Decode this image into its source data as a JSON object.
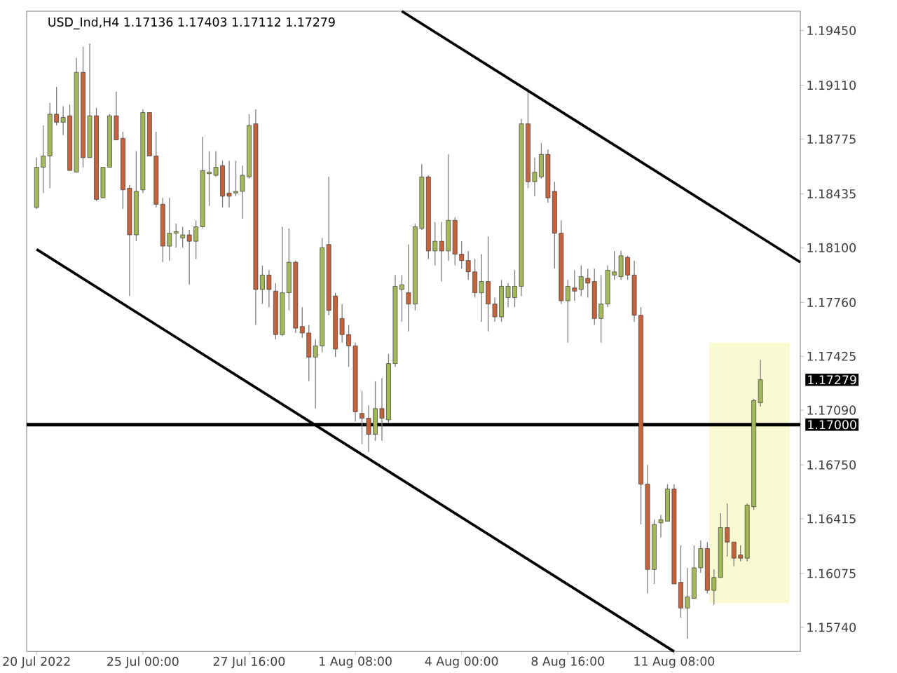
{
  "chart_data": {
    "type": "candlestick",
    "title": "USD_Ind,H4 1.17136 1.17403 1.17112 1.17279",
    "categories": [
      "20 Jul 2022",
      null,
      null,
      null,
      null,
      null,
      null,
      null,
      null,
      null,
      null,
      null,
      null,
      null,
      null,
      null,
      "25 Jul 00:00",
      null,
      null,
      null,
      null,
      null,
      null,
      null,
      null,
      null,
      null,
      null,
      null,
      null,
      null,
      null,
      "27 Jul 16:00",
      null,
      null,
      null,
      null,
      null,
      null,
      null,
      null,
      null,
      null,
      null,
      null,
      null,
      null,
      null,
      "1 Aug 08:00",
      null,
      null,
      null,
      null,
      null,
      null,
      null,
      null,
      null,
      null,
      null,
      null,
      null,
      null,
      null,
      "4 Aug 00:00",
      null,
      null,
      null,
      null,
      null,
      null,
      null,
      null,
      null,
      null,
      null,
      null,
      null,
      null,
      null,
      "8 Aug 16:00",
      null,
      null,
      null,
      null,
      null,
      null,
      null,
      null,
      null,
      null,
      null,
      null,
      null,
      null,
      null,
      "11 Aug 08:00",
      null,
      null,
      null,
      null,
      null,
      null,
      null,
      null,
      null,
      null,
      null,
      null,
      null,
      null,
      null,
      null,
      null,
      null,
      null
    ],
    "ohlc": [
      [
        1.1835,
        1.1866,
        1.1834,
        1.186
      ],
      [
        1.186,
        1.1886,
        1.1844,
        1.1867
      ],
      [
        1.1867,
        1.19,
        1.1847,
        1.1893
      ],
      [
        1.1893,
        1.191,
        1.1886,
        1.1888
      ],
      [
        1.1888,
        1.1898,
        1.188,
        1.1891
      ],
      [
        1.1892,
        1.1899,
        1.1858,
        1.1858
      ],
      [
        1.1857,
        1.1928,
        1.1857,
        1.1919
      ],
      [
        1.1919,
        1.1935,
        1.186,
        1.1866
      ],
      [
        1.1866,
        1.1937,
        1.1866,
        1.1892
      ],
      [
        1.1892,
        1.1897,
        1.1839,
        1.184
      ],
      [
        1.1841,
        1.186,
        1.1841,
        1.186
      ],
      [
        1.186,
        1.1893,
        1.186,
        1.1892
      ],
      [
        1.1892,
        1.1907,
        1.1877,
        1.1877
      ],
      [
        1.1878,
        1.1882,
        1.1834,
        1.1846
      ],
      [
        1.1847,
        1.1849,
        1.178,
        1.1818
      ],
      [
        1.1818,
        1.187,
        1.1814,
        1.1845
      ],
      [
        1.1846,
        1.1896,
        1.1844,
        1.1894
      ],
      [
        1.1894,
        1.1894,
        1.1867,
        1.1867
      ],
      [
        1.1867,
        1.1882,
        1.1835,
        1.1837
      ],
      [
        1.1837,
        1.1841,
        1.1801,
        1.1811
      ],
      [
        1.1811,
        1.1841,
        1.1802,
        1.1819
      ],
      [
        1.1819,
        1.1825,
        1.181,
        1.182
      ],
      [
        1.1816,
        1.1823,
        1.181,
        1.1818
      ],
      [
        1.1818,
        1.1821,
        1.1787,
        1.1814
      ],
      [
        1.1814,
        1.1827,
        1.1803,
        1.1823
      ],
      [
        1.1823,
        1.1879,
        1.1822,
        1.1858
      ],
      [
        1.1856,
        1.187,
        1.1836,
        1.1857
      ],
      [
        1.1855,
        1.187,
        1.1854,
        1.186
      ],
      [
        1.1861,
        1.1864,
        1.1835,
        1.1842
      ],
      [
        1.1844,
        1.1864,
        1.1835,
        1.1842
      ],
      [
        1.1844,
        1.1864,
        1.1842,
        1.1845
      ],
      [
        1.1845,
        1.1861,
        1.1828,
        1.1855
      ],
      [
        1.1854,
        1.1893,
        1.1853,
        1.1886
      ],
      [
        1.1887,
        1.1896,
        1.1762,
        1.1784
      ],
      [
        1.1784,
        1.1799,
        1.1775,
        1.1793
      ],
      [
        1.1793,
        1.1796,
        1.1773,
        1.1784
      ],
      [
        1.1783,
        1.1788,
        1.1753,
        1.1756
      ],
      [
        1.1756,
        1.1823,
        1.1755,
        1.1782
      ],
      [
        1.1782,
        1.1822,
        1.1771,
        1.1801
      ],
      [
        1.1801,
        1.1802,
        1.1757,
        1.176
      ],
      [
        1.1761,
        1.1773,
        1.1754,
        1.1757
      ],
      [
        1.1757,
        1.1762,
        1.1727,
        1.1742
      ],
      [
        1.1742,
        1.1753,
        1.171,
        1.1749
      ],
      [
        1.1749,
        1.1816,
        1.1745,
        1.181
      ],
      [
        1.1812,
        1.1854,
        1.1768,
        1.1771
      ],
      [
        1.178,
        1.1782,
        1.1742,
        1.1747
      ],
      [
        1.1766,
        1.1775,
        1.1751,
        1.1756
      ],
      [
        1.1756,
        1.1762,
        1.1736,
        1.1749
      ],
      [
        1.1749,
        1.1751,
        1.1702,
        1.1708
      ],
      [
        1.1707,
        1.1721,
        1.1688,
        1.1704
      ],
      [
        1.1704,
        1.1712,
        1.1683,
        1.1694
      ],
      [
        1.1694,
        1.1727,
        1.169,
        1.171
      ],
      [
        1.171,
        1.1729,
        1.169,
        1.1704
      ],
      [
        1.1703,
        1.1744,
        1.1701,
        1.1738
      ],
      [
        1.1738,
        1.1793,
        1.1736,
        1.1786
      ],
      [
        1.1784,
        1.1793,
        1.1764,
        1.1787
      ],
      [
        1.1782,
        1.1812,
        1.1758,
        1.1775
      ],
      [
        1.1775,
        1.1825,
        1.1771,
        1.1823
      ],
      [
        1.1822,
        1.1862,
        1.1821,
        1.1854
      ],
      [
        1.1854,
        1.1855,
        1.1803,
        1.1808
      ],
      [
        1.1808,
        1.1826,
        1.1799,
        1.1814
      ],
      [
        1.1814,
        1.1826,
        1.1789,
        1.1808
      ],
      [
        1.1808,
        1.1868,
        1.1802,
        1.1827
      ],
      [
        1.1827,
        1.1829,
        1.1799,
        1.1806
      ],
      [
        1.1806,
        1.1814,
        1.1797,
        1.1802
      ],
      [
        1.1802,
        1.1808,
        1.179,
        1.1795
      ],
      [
        1.1795,
        1.1803,
        1.1779,
        1.1782
      ],
      [
        1.1782,
        1.1806,
        1.1764,
        1.1789
      ],
      [
        1.1789,
        1.1817,
        1.1758,
        1.1775
      ],
      [
        1.1775,
        1.1779,
        1.1764,
        1.1767
      ],
      [
        1.1767,
        1.179,
        1.1764,
        1.1786
      ],
      [
        1.1779,
        1.1788,
        1.1773,
        1.1786
      ],
      [
        1.1779,
        1.1796,
        1.1773,
        1.1786
      ],
      [
        1.1786,
        1.189,
        1.178,
        1.1887
      ],
      [
        1.1887,
        1.1909,
        1.1847,
        1.1851
      ],
      [
        1.1851,
        1.1866,
        1.1842,
        1.1857
      ],
      [
        1.1854,
        1.1875,
        1.1853,
        1.1868
      ],
      [
        1.1868,
        1.1871,
        1.1838,
        1.1841
      ],
      [
        1.1845,
        1.1851,
        1.1797,
        1.1819
      ],
      [
        1.1819,
        1.1827,
        1.1775,
        1.1777
      ],
      [
        1.1777,
        1.179,
        1.1751,
        1.1786
      ],
      [
        1.1785,
        1.1796,
        1.1777,
        1.1783
      ],
      [
        1.1784,
        1.1799,
        1.178,
        1.1792
      ],
      [
        1.1791,
        1.1797,
        1.1779,
        1.1788
      ],
      [
        1.1789,
        1.1797,
        1.1762,
        1.1766
      ],
      [
        1.1766,
        1.1793,
        1.1751,
        1.1775
      ],
      [
        1.1775,
        1.1799,
        1.1773,
        1.1796
      ],
      [
        1.1793,
        1.1808,
        1.179,
        1.1795
      ],
      [
        1.1792,
        1.1808,
        1.179,
        1.1805
      ],
      [
        1.1804,
        1.1805,
        1.179,
        1.1793
      ],
      [
        1.1793,
        1.1802,
        1.1764,
        1.1768
      ],
      [
        1.1768,
        1.1773,
        1.1638,
        1.1663
      ],
      [
        1.1663,
        1.1675,
        1.1595,
        1.161
      ],
      [
        1.161,
        1.1641,
        1.1601,
        1.1638
      ],
      [
        1.1639,
        1.1644,
        1.163,
        1.1641
      ],
      [
        1.164,
        1.1663,
        1.164,
        1.166
      ],
      [
        1.166,
        1.1663,
        1.1601,
        1.1601
      ],
      [
        1.1602,
        1.1625,
        1.158,
        1.1586
      ],
      [
        1.1586,
        1.1611,
        1.1567,
        1.1593
      ],
      [
        1.1592,
        1.1625,
        1.1592,
        1.1611
      ],
      [
        1.1611,
        1.1628,
        1.1608,
        1.1623
      ],
      [
        1.1623,
        1.1627,
        1.1595,
        1.1597
      ],
      [
        1.1597,
        1.161,
        1.1588,
        1.1605
      ],
      [
        1.1605,
        1.1645,
        1.1605,
        1.1636
      ],
      [
        1.1636,
        1.1651,
        1.1618,
        1.1627
      ],
      [
        1.1627,
        1.1627,
        1.1612,
        1.1617
      ],
      [
        1.1619,
        1.1625,
        1.1615,
        1.1617
      ],
      [
        1.1617,
        1.1651,
        1.1615,
        1.165
      ],
      [
        1.1649,
        1.1716,
        1.1647,
        1.1715
      ],
      [
        1.17136,
        1.17403,
        1.17112,
        1.17279
      ],
      null,
      null,
      null,
      null,
      null,
      null
    ],
    "colors": [
      "#a3b85a",
      "#a3b85a",
      "#a3b85a",
      "#c4633c",
      "#a3b85a",
      "#c4633c",
      "#a3b85a",
      "#c4633c",
      "#a3b85a",
      "#c4633c",
      "#a3b85a",
      "#a3b85a",
      "#c4633c",
      "#c4633c",
      "#c4633c",
      "#a3b85a",
      "#a3b85a",
      "#c4633c",
      "#c4633c",
      "#c4633c",
      "#a3b85a",
      "#a3b85a",
      "#a3b85a",
      "#c4633c",
      "#a3b85a",
      "#a3b85a",
      "#a3b85a",
      "#a3b85a",
      "#c4633c",
      "#c4633c",
      "#a3b85a",
      "#a3b85a",
      "#a3b85a",
      "#c4633c",
      "#a3b85a",
      "#c4633c",
      "#c4633c",
      "#a3b85a",
      "#a3b85a",
      "#c4633c",
      "#c4633c",
      "#c4633c",
      "#a3b85a",
      "#a3b85a",
      "#c4633c",
      "#c4633c",
      "#c4633c",
      "#c4633c",
      "#c4633c",
      "#c4633c",
      "#c4633c",
      "#a3b85a",
      "#c4633c",
      "#a3b85a",
      "#a3b85a",
      "#a3b85a",
      "#c4633c",
      "#a3b85a",
      "#a3b85a",
      "#c4633c",
      "#a3b85a",
      "#c4633c",
      "#a3b85a",
      "#c4633c",
      "#c4633c",
      "#c4633c",
      "#c4633c",
      "#a3b85a",
      "#c4633c",
      "#c4633c",
      "#a3b85a",
      "#a3b85a",
      "#a3b85a",
      "#a3b85a",
      "#c4633c",
      "#a3b85a",
      "#a3b85a",
      "#c4633c",
      "#c4633c",
      "#c4633c",
      "#a3b85a",
      "#c4633c",
      "#a3b85a",
      "#c4633c",
      "#c4633c",
      "#a3b85a",
      "#a3b85a",
      "#a3b85a",
      "#a3b85a",
      "#c4633c",
      "#c4633c",
      "#c4633c",
      "#c4633c",
      "#a3b85a",
      "#a3b85a",
      "#a3b85a",
      "#c4633c",
      "#c4633c",
      "#a3b85a",
      "#a3b85a",
      "#a3b85a",
      "#c4633c",
      "#a3b85a",
      "#a3b85a",
      "#c4633c",
      "#c4633c",
      "#c4633c",
      "#a3b85a",
      "#a3b85a",
      "#a3b85a",
      null,
      null,
      null,
      null,
      null,
      null
    ],
    "series": [
      {
        "type": "line",
        "color": "#000000",
        "values": [
          null,
          null,
          null,
          null,
          null,
          null,
          null,
          null,
          null,
          null,
          null,
          null,
          null,
          null,
          null,
          null,
          null,
          null,
          null,
          null,
          null,
          null,
          null,
          null,
          null,
          null,
          null,
          null,
          null,
          null,
          null,
          null,
          null,
          null,
          null,
          null,
          null,
          null,
          null,
          null,
          null,
          null,
          null,
          null,
          null,
          null,
          null,
          null,
          null,
          null,
          null,
          null,
          null,
          null,
          null,
          1.1957,
          null,
          null,
          null,
          null,
          null,
          null,
          null,
          null,
          null,
          null,
          null,
          null,
          null,
          null,
          null,
          null,
          null,
          null,
          null,
          null,
          null,
          null,
          null,
          null,
          null,
          null,
          null,
          null,
          null,
          null,
          null,
          null,
          null,
          null,
          null,
          null,
          null,
          null,
          null,
          null,
          null,
          null,
          null,
          null,
          null,
          null,
          null,
          null,
          null,
          null,
          null,
          null,
          null,
          null,
          null,
          null,
          null,
          null,
          null,
          1.1801
        ]
      },
      {
        "type": "line",
        "color": "#000000",
        "values": [
          1.1809,
          null,
          null,
          null,
          null,
          null,
          null,
          null,
          null,
          null,
          null,
          null,
          null,
          null,
          null,
          null,
          null,
          null,
          null,
          null,
          null,
          null,
          null,
          null,
          null,
          null,
          null,
          null,
          null,
          null,
          null,
          null,
          null,
          null,
          null,
          null,
          null,
          null,
          null,
          null,
          null,
          null,
          null,
          null,
          null,
          null,
          null,
          null,
          null,
          null,
          null,
          null,
          null,
          null,
          null,
          null,
          null,
          null,
          null,
          null,
          null,
          null,
          null,
          null,
          null,
          null,
          null,
          null,
          null,
          null,
          null,
          null,
          null,
          null,
          null,
          null,
          null,
          null,
          null,
          null,
          null,
          null,
          null,
          null,
          null,
          null,
          null,
          null,
          null,
          null,
          null,
          null,
          null,
          null,
          null,
          null,
          1.1559,
          null,
          null,
          null,
          null,
          null,
          null,
          null,
          null,
          null,
          null,
          null,
          null,
          null,
          null,
          null,
          null,
          null,
          null,
          null
        ]
      }
    ],
    "ylim": [
      1.1559,
      1.1957
    ],
    "yticks": [
      {
        "value": 1.1945,
        "label": "1.19450"
      },
      {
        "value": 1.1911,
        "label": "1.19110"
      },
      {
        "value": 1.18775,
        "label": "1.18775"
      },
      {
        "value": 1.18435,
        "label": "1.18435"
      },
      {
        "value": 1.181,
        "label": "1.18100"
      },
      {
        "value": 1.1776,
        "label": "1.17760"
      },
      {
        "value": 1.17425,
        "label": "1.17425"
      },
      {
        "value": 1.1709,
        "label": "1.17090"
      },
      {
        "value": 1.1675,
        "label": "1.16750"
      },
      {
        "value": 1.16415,
        "label": "1.16415"
      },
      {
        "value": 1.16075,
        "label": "1.16075"
      },
      {
        "value": 1.1574,
        "label": "1.15740"
      }
    ],
    "ref_lines": [
      {
        "axis": "y",
        "value": 1.17,
        "label": "1.17000",
        "color": "#000000"
      }
    ],
    "annotations": [
      "1.17279"
    ]
  }
}
